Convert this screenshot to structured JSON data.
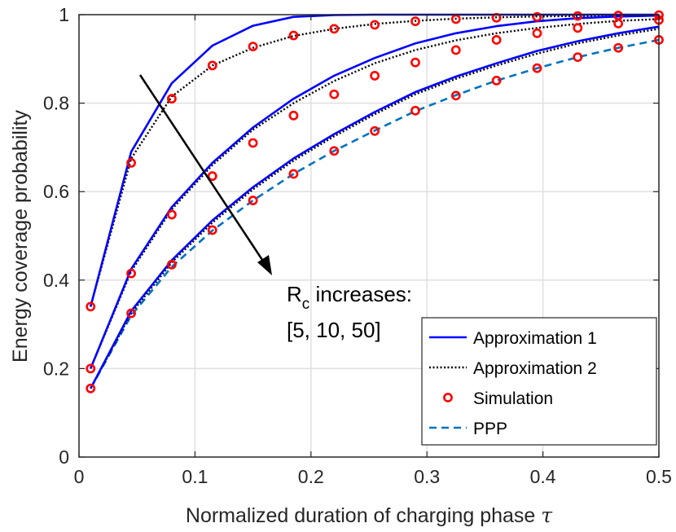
{
  "chart_data": {
    "type": "line",
    "xlabel": "Normalized duration of charging phase",
    "xlabel_symbol": "τ",
    "ylabel": "Energy coverage probability",
    "xlim": [
      0,
      0.5
    ],
    "ylim": [
      0,
      1
    ],
    "xticks": [
      "0",
      "0.1",
      "0.2",
      "0.3",
      "0.4",
      "0.5"
    ],
    "yticks": [
      "0",
      "0.2",
      "0.4",
      "0.6",
      "0.8",
      "1"
    ],
    "grid": true,
    "legend_position": "bottom-right",
    "annotation": {
      "line1_prefix": "R",
      "line1_subscript": "c",
      "line1_suffix": " increases:",
      "line2": "[5, 10, 50]"
    },
    "colors": {
      "approx1": "#0000ff",
      "approx2": "#000000",
      "simulation": "#ff0000",
      "ppp": "#0072bd"
    },
    "series": [
      {
        "name": "Approximation 1",
        "style": "solid",
        "groups": [
          {
            "x": [
              0.01,
              0.045,
              0.08,
              0.115,
              0.15,
              0.185,
              0.22,
              0.255,
              0.29,
              0.325,
              0.36,
              0.395,
              0.43,
              0.465,
              0.5
            ],
            "y": [
              0.34,
              0.69,
              0.845,
              0.93,
              0.975,
              0.995,
              0.999,
              1,
              1,
              1,
              1,
              1,
              1,
              1,
              1
            ]
          },
          {
            "x": [
              0.01,
              0.045,
              0.08,
              0.115,
              0.15,
              0.185,
              0.22,
              0.255,
              0.29,
              0.325,
              0.36,
              0.395,
              0.43,
              0.465,
              0.5
            ],
            "y": [
              0.2,
              0.425,
              0.565,
              0.665,
              0.745,
              0.81,
              0.862,
              0.902,
              0.935,
              0.958,
              0.974,
              0.985,
              0.992,
              0.996,
              0.998
            ]
          },
          {
            "x": [
              0.01,
              0.045,
              0.08,
              0.115,
              0.15,
              0.185,
              0.22,
              0.255,
              0.29,
              0.325,
              0.36,
              0.395,
              0.43,
              0.465,
              0.5
            ],
            "y": [
              0.155,
              0.33,
              0.445,
              0.535,
              0.61,
              0.675,
              0.73,
              0.78,
              0.825,
              0.86,
              0.89,
              0.918,
              0.94,
              0.958,
              0.973
            ]
          }
        ]
      },
      {
        "name": "Approximation 2",
        "style": "dotted",
        "groups": [
          {
            "x": [
              0.01,
              0.045,
              0.08,
              0.115,
              0.15,
              0.185,
              0.22,
              0.255,
              0.29,
              0.325,
              0.36,
              0.395,
              0.43,
              0.465,
              0.5
            ],
            "y": [
              0.34,
              0.675,
              0.815,
              0.885,
              0.925,
              0.952,
              0.968,
              0.979,
              0.986,
              0.991,
              0.994,
              0.996,
              0.997,
              0.998,
              0.999
            ]
          },
          {
            "x": [
              0.01,
              0.045,
              0.08,
              0.115,
              0.15,
              0.185,
              0.22,
              0.255,
              0.29,
              0.325,
              0.36,
              0.395,
              0.43,
              0.465,
              0.5
            ],
            "y": [
              0.2,
              0.42,
              0.56,
              0.66,
              0.74,
              0.8,
              0.85,
              0.89,
              0.92,
              0.942,
              0.958,
              0.97,
              0.979,
              0.986,
              0.99
            ]
          },
          {
            "x": [
              0.01,
              0.045,
              0.08,
              0.115,
              0.15,
              0.185,
              0.22,
              0.255,
              0.29,
              0.325,
              0.36,
              0.395,
              0.43,
              0.465,
              0.5
            ],
            "y": [
              0.155,
              0.325,
              0.44,
              0.53,
              0.605,
              0.67,
              0.725,
              0.775,
              0.82,
              0.855,
              0.885,
              0.912,
              0.935,
              0.953,
              0.968
            ]
          }
        ]
      },
      {
        "name": "Simulation",
        "style": "marker",
        "groups": [
          {
            "x": [
              0.01,
              0.045,
              0.08,
              0.115,
              0.15,
              0.185,
              0.22,
              0.255,
              0.29,
              0.325,
              0.36,
              0.395,
              0.43,
              0.465,
              0.5
            ],
            "y": [
              0.34,
              0.665,
              0.81,
              0.885,
              0.928,
              0.953,
              0.968,
              0.977,
              0.985,
              0.99,
              0.993,
              0.995,
              0.997,
              0.998,
              0.999
            ]
          },
          {
            "x": [
              0.01,
              0.045,
              0.08,
              0.115,
              0.15,
              0.185,
              0.22,
              0.255,
              0.29,
              0.325,
              0.36,
              0.395,
              0.43,
              0.465,
              0.5
            ],
            "y": [
              0.2,
              0.415,
              0.548,
              0.635,
              0.71,
              0.772,
              0.82,
              0.862,
              0.892,
              0.92,
              0.943,
              0.958,
              0.97,
              0.98,
              0.988
            ]
          },
          {
            "x": [
              0.01,
              0.045,
              0.08,
              0.115,
              0.15,
              0.185,
              0.22,
              0.255,
              0.29,
              0.325,
              0.36,
              0.395,
              0.43,
              0.465,
              0.5
            ],
            "y": [
              0.155,
              0.325,
              0.435,
              0.513,
              0.58,
              0.64,
              0.692,
              0.737,
              0.783,
              0.817,
              0.851,
              0.879,
              0.904,
              0.925,
              0.943
            ]
          }
        ]
      },
      {
        "name": "PPP",
        "style": "dashed",
        "groups": [
          {
            "x": [
              0.01,
              0.045,
              0.08,
              0.115,
              0.15,
              0.185,
              0.22,
              0.255,
              0.29,
              0.325,
              0.36,
              0.395,
              0.43,
              0.465,
              0.5
            ],
            "y": [
              0.155,
              0.32,
              0.43,
              0.512,
              0.58,
              0.64,
              0.692,
              0.738,
              0.782,
              0.818,
              0.851,
              0.879,
              0.904,
              0.925,
              0.943
            ]
          }
        ]
      }
    ]
  }
}
